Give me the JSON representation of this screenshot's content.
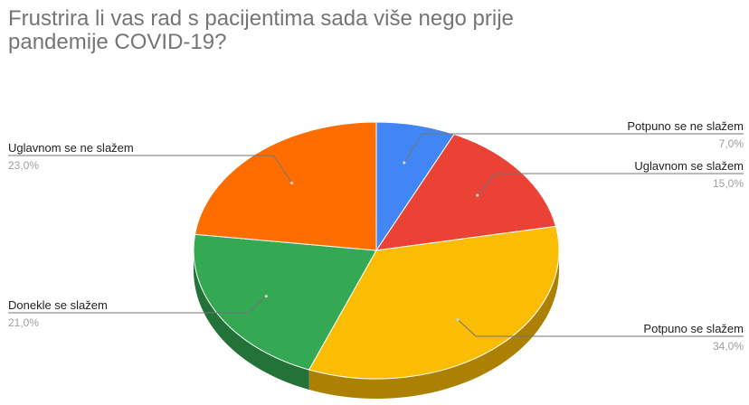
{
  "chart_data": {
    "type": "pie",
    "title": "Frustrira li vas rad s pacijentima sada više nego prije\npandemije COVID-19?",
    "three_d": true,
    "slices": [
      {
        "label": "Potpuno se ne slažem",
        "value": 7.0,
        "pct_text": "7,0%",
        "color": "#4285F4",
        "side": "right"
      },
      {
        "label": "Uglavnom se slažem",
        "value": 15.0,
        "pct_text": "15,0%",
        "color": "#EA4335",
        "side": "right"
      },
      {
        "label": "Potpuno se slažem",
        "value": 34.0,
        "pct_text": "34,0%",
        "color": "#FBBC04",
        "side": "right"
      },
      {
        "label": "Donekle se slažem",
        "value": 21.0,
        "pct_text": "21,0%",
        "color": "#34A853",
        "side": "left"
      },
      {
        "label": "Uglavnom se ne slažem",
        "value": 23.0,
        "pct_text": "23,0%",
        "color": "#FF6D01",
        "side": "left"
      }
    ],
    "label_color": "#222222",
    "pct_color": "#9e9e9e",
    "leader_color": "#757575"
  }
}
